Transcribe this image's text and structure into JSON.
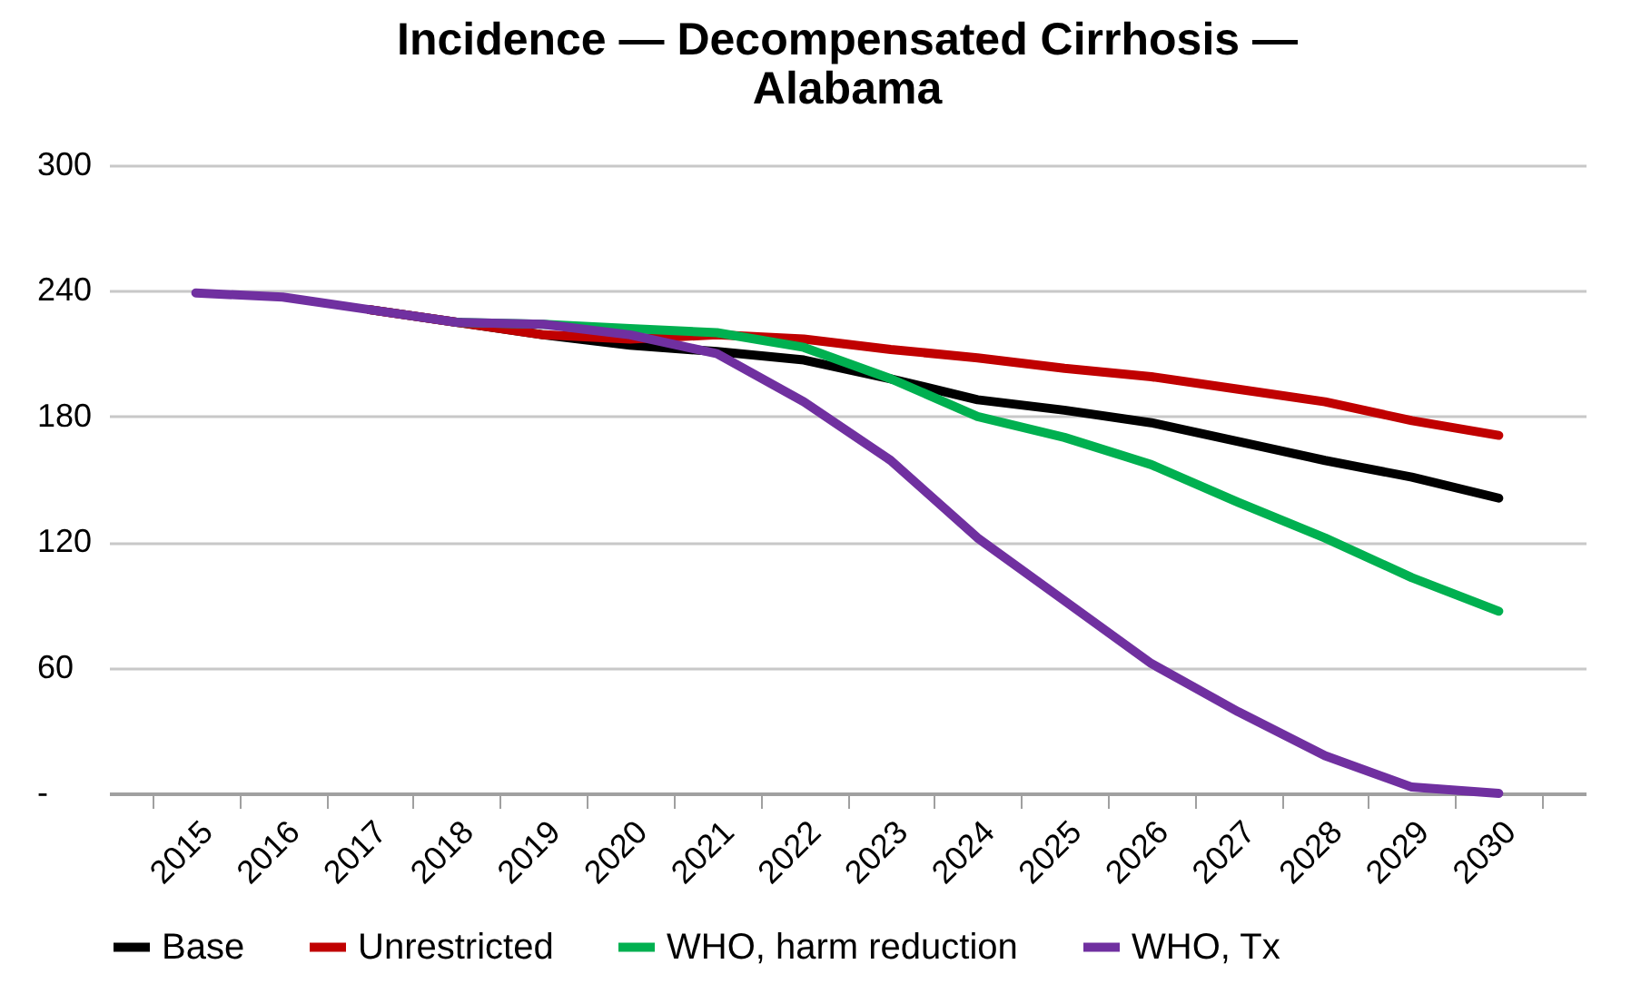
{
  "chart_data": {
    "type": "line",
    "title": "Incidence — Decompensated Cirrhosis — Alabama",
    "categories": [
      "2015",
      "2016",
      "2017",
      "2018",
      "2019",
      "2020",
      "2021",
      "2022",
      "2023",
      "2024",
      "2025",
      "2026",
      "2027",
      "2028",
      "2029",
      "2030"
    ],
    "series": [
      {
        "name": "Base",
        "color": "#000000",
        "values": [
          null,
          null,
          231,
          225,
          219,
          214,
          211,
          207,
          198,
          188,
          183,
          177,
          168,
          159,
          151,
          141
        ]
      },
      {
        "name": "Unrestricted",
        "color": "#c00000",
        "values": [
          null,
          null,
          231,
          225,
          219,
          217,
          219,
          217,
          212,
          208,
          203,
          199,
          193,
          187,
          178,
          171
        ]
      },
      {
        "name": "WHO, harm reduction",
        "color": "#00b050",
        "values": [
          null,
          null,
          null,
          225,
          224,
          222,
          220,
          213,
          198,
          180,
          170,
          157,
          139,
          122,
          103,
          87
        ]
      },
      {
        "name": "WHO, Tx",
        "color": "#7030a0",
        "values": [
          239,
          237,
          231,
          225,
          224,
          219,
          210,
          187,
          159,
          122,
          92,
          62,
          39,
          18,
          3,
          0
        ]
      }
    ],
    "ylim": [
      0,
      300
    ],
    "yticks": [
      {
        "value": 0,
        "label": "-"
      },
      60,
      120,
      180,
      240,
      300
    ],
    "grid": "y",
    "legend": "bottom",
    "line_style": "solid",
    "marker": "none"
  }
}
